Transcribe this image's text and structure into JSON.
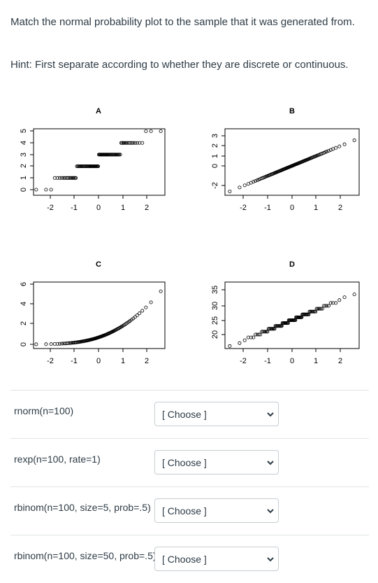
{
  "question": {
    "instruction": "Match the normal probability plot to the sample that it was generated from.",
    "hint": "Hint:  First separate according to whether they are discrete or continuous."
  },
  "plots": [
    {
      "label": "A",
      "x_ticks": [
        "-2",
        "-1",
        "0",
        "1",
        "2"
      ],
      "y_ticks": [
        "0",
        "1",
        "2",
        "3",
        "4",
        "5"
      ]
    },
    {
      "label": "B",
      "x_ticks": [
        "-2",
        "-1",
        "0",
        "1",
        "2"
      ],
      "y_ticks": [
        "-2",
        "0",
        "1",
        "2",
        "3"
      ]
    },
    {
      "label": "C",
      "x_ticks": [
        "-2",
        "-1",
        "0",
        "1",
        "2"
      ],
      "y_ticks": [
        "0",
        "2",
        "4",
        "6"
      ]
    },
    {
      "label": "D",
      "x_ticks": [
        "-2",
        "-1",
        "0",
        "1",
        "2"
      ],
      "y_ticks": [
        "20",
        "25",
        "30",
        "35"
      ]
    }
  ],
  "rows": [
    {
      "label": "rnorm(n=100)",
      "select": "[ Choose ]"
    },
    {
      "label": "rexp(n=100, rate=1)",
      "select": "[ Choose ]"
    },
    {
      "label": "rbinom(n=100, size=5, prob=.5)",
      "select": "[ Choose ]"
    },
    {
      "label": "rbinom(n=100, size=50, prob=.5)",
      "select": "[ Choose ]"
    }
  ]
}
